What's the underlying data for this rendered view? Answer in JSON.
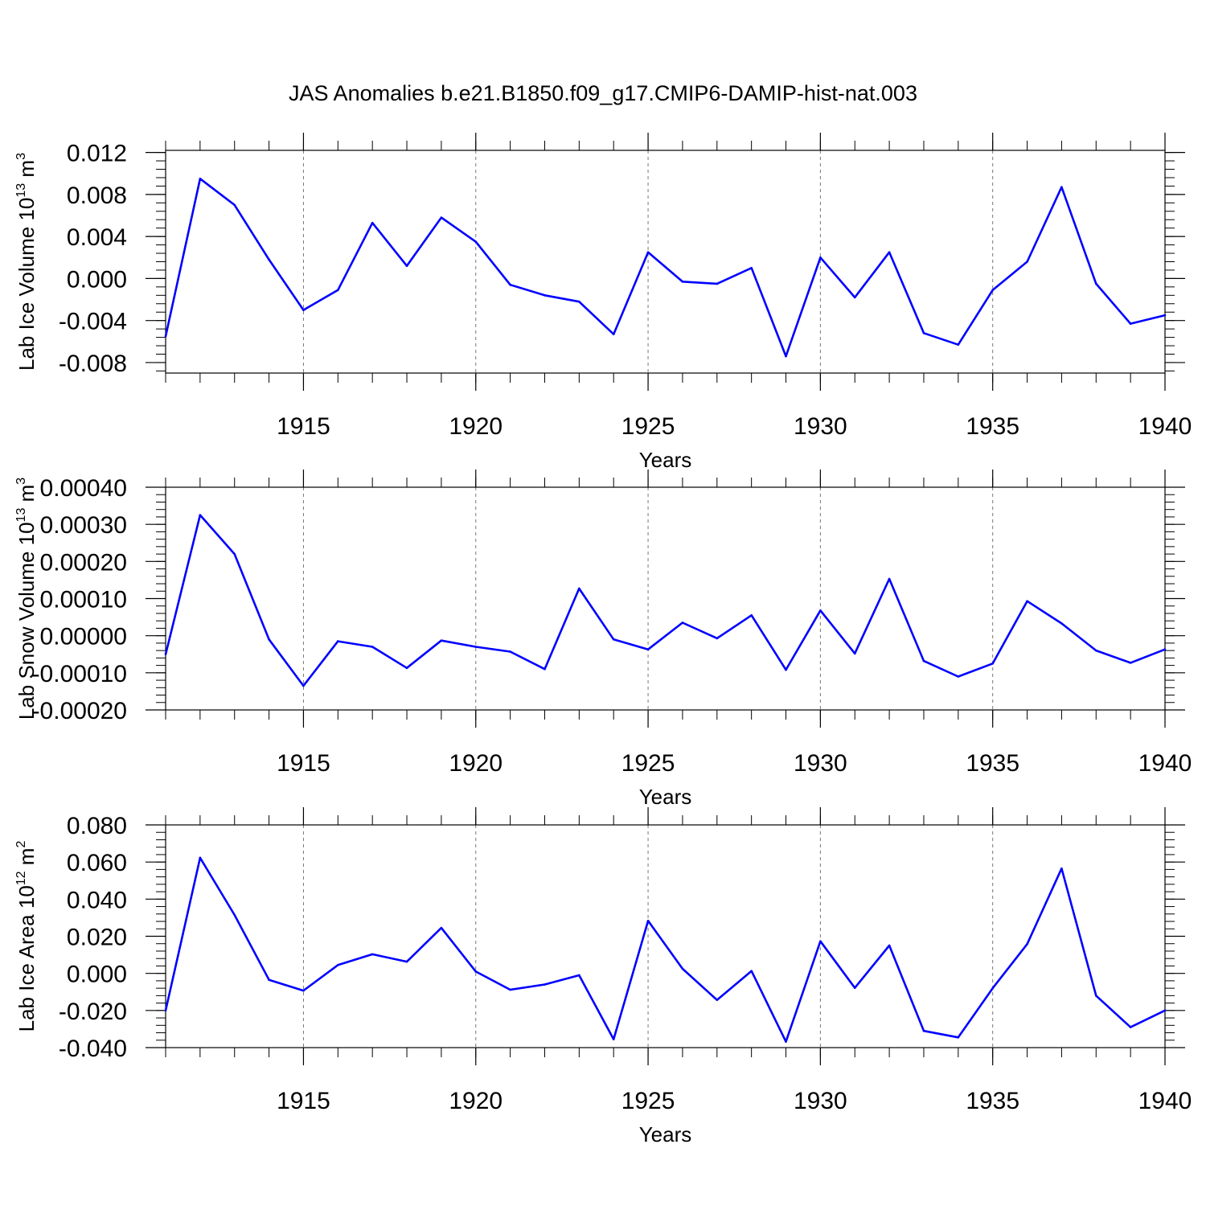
{
  "figure": {
    "title": "JAS Anomalies b.e21.B1850.f09_g17.CMIP6-DAMIP-hist-nat.003",
    "line_color": "#0000ff",
    "grid_color": "#777777"
  },
  "chart_data": [
    {
      "type": "line",
      "title": "",
      "xlabel": "Years",
      "ylabel": "Lab Ice Volume 10^13 m^3",
      "ylabel_parts": {
        "main": "Lab Ice Volume 10",
        "exp1": "13",
        "unit": " m",
        "exp2": "3"
      },
      "xlim": [
        1911,
        1940
      ],
      "ylim": [
        -0.009,
        0.0122
      ],
      "xticks": [
        1915,
        1920,
        1925,
        1930,
        1935,
        1940
      ],
      "xtick_labels": [
        "1915",
        "1920",
        "1925",
        "1930",
        "1935",
        "1940"
      ],
      "yticks": [
        -0.008,
        -0.004,
        0.0,
        0.004,
        0.008,
        0.012
      ],
      "ytick_labels": [
        "-0.008",
        "-0.004",
        "0.000",
        "0.004",
        "0.008",
        "0.012"
      ],
      "grid": "vertical dashed at major x ticks",
      "x": [
        1911,
        1912,
        1913,
        1914,
        1915,
        1916,
        1917,
        1918,
        1919,
        1920,
        1921,
        1922,
        1923,
        1924,
        1925,
        1926,
        1927,
        1928,
        1929,
        1930,
        1931,
        1932,
        1933,
        1934,
        1935,
        1936,
        1937,
        1938,
        1939,
        1940
      ],
      "series": [
        {
          "values": [
            -0.0055,
            0.0095,
            0.007,
            0.0018,
            -0.003,
            -0.0011,
            0.0053,
            0.0012,
            0.0058,
            0.0035,
            -0.0006,
            -0.0016,
            -0.0022,
            -0.0053,
            0.0025,
            -0.0003,
            -0.0005,
            0.001,
            -0.0074,
            0.002,
            -0.0018,
            0.0025,
            -0.0052,
            -0.0063,
            -0.0011,
            0.0016,
            0.0087,
            -0.0005,
            -0.0043,
            -0.0035
          ]
        }
      ]
    },
    {
      "type": "line",
      "title": "",
      "xlabel": "Years",
      "ylabel": "Lab Snow Volume 10^13 m^3",
      "ylabel_parts": {
        "main": "Lab Snow Volume 10",
        "exp1": "13",
        "unit": " m",
        "exp2": "3"
      },
      "xlim": [
        1911,
        1940
      ],
      "ylim": [
        -0.0002,
        0.0004
      ],
      "xticks": [
        1915,
        1920,
        1925,
        1930,
        1935,
        1940
      ],
      "xtick_labels": [
        "1915",
        "1920",
        "1925",
        "1930",
        "1935",
        "1940"
      ],
      "yticks": [
        -0.0002,
        -0.0001,
        0.0,
        0.0001,
        0.0002,
        0.0003,
        0.0004
      ],
      "ytick_labels": [
        "-0.00020",
        "-0.00010",
        "0.00000",
        "0.00010",
        "0.00020",
        "0.00030",
        "0.00040"
      ],
      "grid": "vertical dashed at major x ticks",
      "x": [
        1911,
        1912,
        1913,
        1914,
        1915,
        1916,
        1917,
        1918,
        1919,
        1920,
        1921,
        1922,
        1923,
        1924,
        1925,
        1926,
        1927,
        1928,
        1929,
        1930,
        1931,
        1932,
        1933,
        1934,
        1935,
        1936,
        1937,
        1938,
        1939,
        1940
      ],
      "series": [
        {
          "values": [
            -5e-05,
            0.000325,
            0.00022,
            -1e-05,
            -0.000135,
            -1.5e-05,
            -3e-05,
            -8.7e-05,
            -1.3e-05,
            -3e-05,
            -4.3e-05,
            -9e-05,
            0.000127,
            -1e-05,
            -3.7e-05,
            3.5e-05,
            -7e-06,
            5.5e-05,
            -9.2e-05,
            6.8e-05,
            -4.8e-05,
            0.000153,
            -6.8e-05,
            -0.00011,
            -7.5e-05,
            9.3e-05,
            3.3e-05,
            -4e-05,
            -7.3e-05,
            -3.7e-05
          ]
        }
      ]
    },
    {
      "type": "line",
      "title": "",
      "xlabel": "Years",
      "ylabel": "Lab Ice Area 10^12 m^2",
      "ylabel_parts": {
        "main": "Lab Ice Area 10",
        "exp1": "12",
        "unit": " m",
        "exp2": "2"
      },
      "xlim": [
        1911,
        1940
      ],
      "ylim": [
        -0.04,
        0.08
      ],
      "xticks": [
        1915,
        1920,
        1925,
        1930,
        1935,
        1940
      ],
      "xtick_labels": [
        "1915",
        "1920",
        "1925",
        "1930",
        "1935",
        "1940"
      ],
      "yticks": [
        -0.04,
        -0.02,
        0.0,
        0.02,
        0.04,
        0.06,
        0.08
      ],
      "ytick_labels": [
        "-0.040",
        "-0.020",
        "0.000",
        "0.020",
        "0.040",
        "0.060",
        "0.080"
      ],
      "grid": "vertical dashed at major x ticks",
      "x": [
        1911,
        1912,
        1913,
        1914,
        1915,
        1916,
        1917,
        1918,
        1919,
        1920,
        1921,
        1922,
        1923,
        1924,
        1925,
        1926,
        1927,
        1928,
        1929,
        1930,
        1931,
        1932,
        1933,
        1934,
        1935,
        1936,
        1937,
        1938,
        1939,
        1940
      ],
      "series": [
        {
          "values": [
            -0.02,
            0.0623,
            0.0315,
            -0.0035,
            -0.0093,
            0.0045,
            0.0103,
            0.0063,
            0.0245,
            0.001,
            -0.0088,
            -0.006,
            -0.001,
            -0.0355,
            0.0283,
            0.0025,
            -0.0143,
            0.0013,
            -0.0368,
            0.0173,
            -0.0078,
            0.015,
            -0.031,
            -0.0345,
            -0.008,
            0.0158,
            0.0565,
            -0.012,
            -0.029,
            -0.02
          ]
        }
      ]
    }
  ]
}
